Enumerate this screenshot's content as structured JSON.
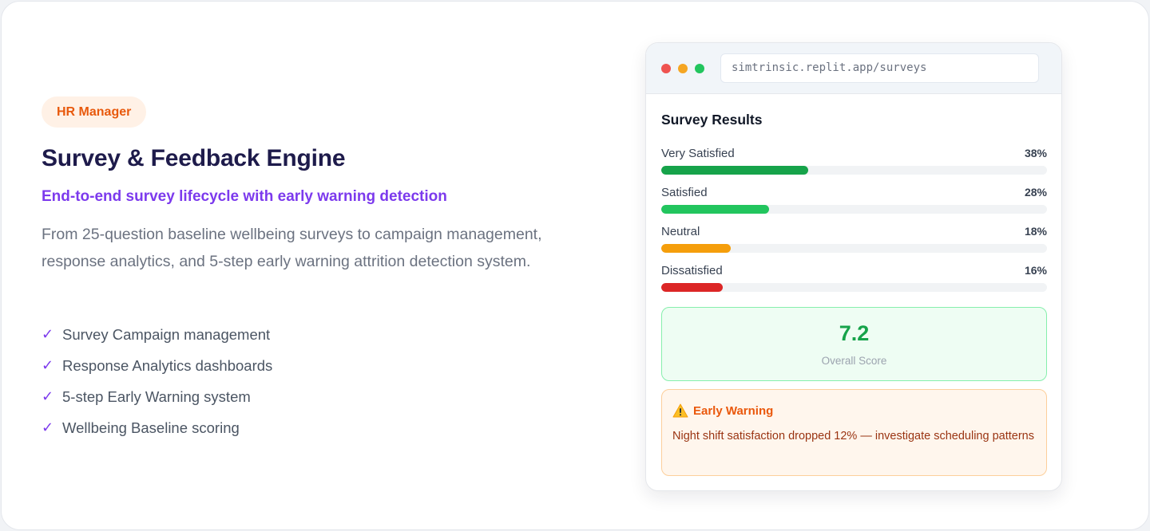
{
  "badge": "HR Manager",
  "title": "Survey & Feedback Engine",
  "subtitle": "End-to-end survey lifecycle with early warning detection",
  "description": "From 25-question baseline wellbeing surveys to campaign management, response analytics, and 5-step early warning attrition detection system.",
  "features": [
    "Survey Campaign management",
    "Response Analytics dashboards",
    "5-step Early Warning system",
    "Wellbeing Baseline scoring"
  ],
  "browser": {
    "url": "simtrinsic.replit.app/surveys",
    "results_title": "Survey Results",
    "results": [
      {
        "label": "Very Satisfied",
        "percent_text": "38%",
        "value": 38,
        "color": "#16a34a"
      },
      {
        "label": "Satisfied",
        "percent_text": "28%",
        "value": 28,
        "color": "#22c55e"
      },
      {
        "label": "Neutral",
        "percent_text": "18%",
        "value": 18,
        "color": "#f59e0b"
      },
      {
        "label": "Dissatisfied",
        "percent_text": "16%",
        "value": 16,
        "color": "#dc2626"
      }
    ],
    "score": {
      "value": "7.2",
      "label": "Overall Score"
    },
    "warning": {
      "icon": "warning-triangle-icon",
      "title": "Early Warning",
      "text": "Night shift satisfaction dropped 12% — investigate scheduling patterns"
    }
  },
  "colors": {
    "accent_purple": "#7c3aed",
    "badge_orange": "#e8590c",
    "title_navy": "#1e1b4b",
    "score_green": "#16a34a"
  }
}
